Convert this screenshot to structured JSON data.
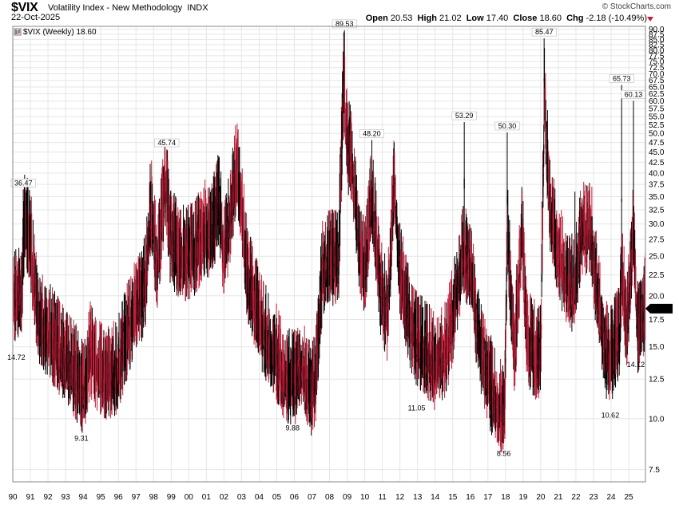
{
  "header": {
    "symbol": "$VIX",
    "name": "Volatility Index - New Methodology",
    "exchange": "INDX",
    "date": "22-Oct-2025",
    "brand": "© StockCharts.com",
    "open_label": "Open",
    "open": "20.53",
    "high_label": "High",
    "high": "21.02",
    "low_label": "Low",
    "low": "17.40",
    "close_label": "Close",
    "close": "18.60",
    "chg_label": "Chg",
    "chg": "-2.18 (-10.49%)"
  },
  "legend": {
    "text": "$VIX (Weekly) 18.60"
  },
  "colors": {
    "up": "#000000",
    "down": "#c0203a",
    "grid": "#e6e6e6",
    "frame": "#888888",
    "last_box": "#000000"
  },
  "chart_data": {
    "type": "candlestick",
    "interval": "Weekly",
    "series_name": "$VIX (Weekly)",
    "last_value": 18.6,
    "x_tick_labels": [
      "90",
      "91",
      "92",
      "93",
      "94",
      "95",
      "96",
      "97",
      "98",
      "99",
      "00",
      "01",
      "02",
      "03",
      "04",
      "05",
      "06",
      "07",
      "08",
      "09",
      "10",
      "11",
      "12",
      "13",
      "14",
      "15",
      "16",
      "17",
      "18",
      "19",
      "20",
      "21",
      "22",
      "23",
      "24",
      "25"
    ],
    "xlim": [
      1990.0,
      2025.95
    ],
    "ylim": [
      7.0,
      91.5
    ],
    "y_scale": "log",
    "y_tick_labels": [
      "7.5",
      "10.0",
      "12.5",
      "15.0",
      "17.5",
      "20.0",
      "22.5",
      "25.0",
      "27.5",
      "30.0",
      "32.5",
      "35.0",
      "37.5",
      "40.0",
      "42.5",
      "45.0",
      "47.5",
      "50.0",
      "52.5",
      "55.0",
      "57.5",
      "60.0",
      "62.5",
      "65.0",
      "67.5",
      "70.0",
      "72.5",
      "75.0",
      "77.5",
      "80.0",
      "82.5",
      "85.0",
      "87.5",
      "90.0"
    ],
    "y_ticks": [
      7.5,
      10,
      12.5,
      15,
      17.5,
      20,
      22.5,
      25,
      27.5,
      30,
      32.5,
      35,
      37.5,
      40,
      42.5,
      45,
      47.5,
      50,
      52.5,
      55,
      57.5,
      60,
      62.5,
      65,
      67.5,
      70,
      72.5,
      75,
      77.5,
      80,
      82.5,
      85,
      87.5,
      90
    ],
    "grid": true,
    "annotations": [
      {
        "x": 1990.6,
        "y": 36.47,
        "label": "36.47",
        "pos": "above"
      },
      {
        "x": 1990.2,
        "y": 14.72,
        "label": "14.72",
        "pos": "below"
      },
      {
        "x": 1993.9,
        "y": 9.31,
        "label": "9.31",
        "pos": "below"
      },
      {
        "x": 1998.75,
        "y": 45.74,
        "label": "45.74",
        "pos": "above"
      },
      {
        "x": 2005.9,
        "y": 9.88,
        "label": "9.88",
        "pos": "below"
      },
      {
        "x": 2008.85,
        "y": 89.53,
        "label": "89.53",
        "pos": "above"
      },
      {
        "x": 2010.4,
        "y": 48.2,
        "label": "48.20",
        "pos": "above"
      },
      {
        "x": 2012.95,
        "y": 11.05,
        "label": "11.05",
        "pos": "below"
      },
      {
        "x": 2015.65,
        "y": 53.29,
        "label": "53.29",
        "pos": "above"
      },
      {
        "x": 2017.9,
        "y": 8.56,
        "label": "8.56",
        "pos": "below"
      },
      {
        "x": 2018.1,
        "y": 50.3,
        "label": "50.30",
        "pos": "above"
      },
      {
        "x": 2020.2,
        "y": 85.47,
        "label": "85.47",
        "pos": "above"
      },
      {
        "x": 2023.95,
        "y": 10.62,
        "label": "10.62",
        "pos": "below"
      },
      {
        "x": 2024.6,
        "y": 65.73,
        "label": "65.73",
        "pos": "above"
      },
      {
        "x": 2025.27,
        "y": 60.13,
        "label": "60.13",
        "pos": "above"
      },
      {
        "x": 2025.4,
        "y": 14.12,
        "label": "14.12",
        "pos": "below"
      }
    ],
    "trend": [
      [
        1990.0,
        19
      ],
      [
        1990.5,
        20
      ],
      [
        1990.7,
        30
      ],
      [
        1991.0,
        26
      ],
      [
        1991.4,
        17
      ],
      [
        1991.8,
        16
      ],
      [
        1992.5,
        14.5
      ],
      [
        1993.0,
        13.5
      ],
      [
        1993.6,
        12.3
      ],
      [
        1994.0,
        11.2
      ],
      [
        1994.4,
        14
      ],
      [
        1994.9,
        12.5
      ],
      [
        1995.5,
        12
      ],
      [
        1996.0,
        13
      ],
      [
        1996.6,
        16
      ],
      [
        1997.0,
        18
      ],
      [
        1997.5,
        20
      ],
      [
        1997.85,
        32
      ],
      [
        1998.2,
        22
      ],
      [
        1998.7,
        38
      ],
      [
        1998.9,
        27
      ],
      [
        1999.3,
        25
      ],
      [
        1999.9,
        24
      ],
      [
        2000.4,
        25
      ],
      [
        2000.9,
        28
      ],
      [
        2001.3,
        27
      ],
      [
        2001.7,
        33
      ],
      [
        2002.0,
        24
      ],
      [
        2002.5,
        33
      ],
      [
        2002.7,
        40
      ],
      [
        2003.0,
        32
      ],
      [
        2003.3,
        22
      ],
      [
        2003.8,
        18
      ],
      [
        2004.3,
        15.5
      ],
      [
        2004.9,
        14
      ],
      [
        2005.5,
        12
      ],
      [
        2006.0,
        12
      ],
      [
        2006.5,
        13
      ],
      [
        2006.9,
        11
      ],
      [
        2007.2,
        12
      ],
      [
        2007.6,
        22
      ],
      [
        2008.0,
        24
      ],
      [
        2008.5,
        23
      ],
      [
        2008.8,
        65
      ],
      [
        2009.0,
        45
      ],
      [
        2009.3,
        40
      ],
      [
        2009.7,
        25
      ],
      [
        2010.0,
        22
      ],
      [
        2010.4,
        35
      ],
      [
        2010.9,
        20
      ],
      [
        2011.3,
        17
      ],
      [
        2011.65,
        38
      ],
      [
        2012.0,
        22
      ],
      [
        2012.5,
        17
      ],
      [
        2012.9,
        15
      ],
      [
        2013.5,
        14
      ],
      [
        2014.0,
        13
      ],
      [
        2014.6,
        14
      ],
      [
        2015.0,
        17
      ],
      [
        2015.6,
        25
      ],
      [
        2016.0,
        22
      ],
      [
        2016.5,
        15
      ],
      [
        2017.0,
        12
      ],
      [
        2017.5,
        10.5
      ],
      [
        2017.95,
        10
      ],
      [
        2018.1,
        28
      ],
      [
        2018.5,
        14
      ],
      [
        2018.95,
        28
      ],
      [
        2019.2,
        15
      ],
      [
        2019.9,
        13.5
      ],
      [
        2020.0,
        14
      ],
      [
        2020.2,
        60
      ],
      [
        2020.5,
        32
      ],
      [
        2020.9,
        26
      ],
      [
        2021.3,
        22
      ],
      [
        2021.9,
        20
      ],
      [
        2022.3,
        28
      ],
      [
        2022.8,
        27
      ],
      [
        2023.2,
        20
      ],
      [
        2023.7,
        14
      ],
      [
        2024.0,
        13.5
      ],
      [
        2024.5,
        16
      ],
      [
        2024.6,
        22
      ],
      [
        2024.9,
        16
      ],
      [
        2025.25,
        28
      ],
      [
        2025.5,
        16
      ],
      [
        2025.8,
        17
      ],
      [
        2025.95,
        18.6
      ]
    ],
    "spikes": [
      [
        1990.6,
        36.47
      ],
      [
        1991.05,
        35
      ],
      [
        1997.85,
        38.2
      ],
      [
        1998.75,
        45.74
      ],
      [
        2001.7,
        43.5
      ],
      [
        2002.55,
        45.2
      ],
      [
        2002.75,
        42.5
      ],
      [
        2008.85,
        89.53
      ],
      [
        2010.4,
        48.2
      ],
      [
        2011.65,
        48
      ],
      [
        2015.65,
        53.29
      ],
      [
        2018.1,
        50.3
      ],
      [
        2020.2,
        85.47
      ],
      [
        2024.6,
        65.73
      ],
      [
        2025.27,
        60.13
      ],
      [
        2021.95,
        36
      ],
      [
        2022.9,
        37
      ]
    ]
  }
}
